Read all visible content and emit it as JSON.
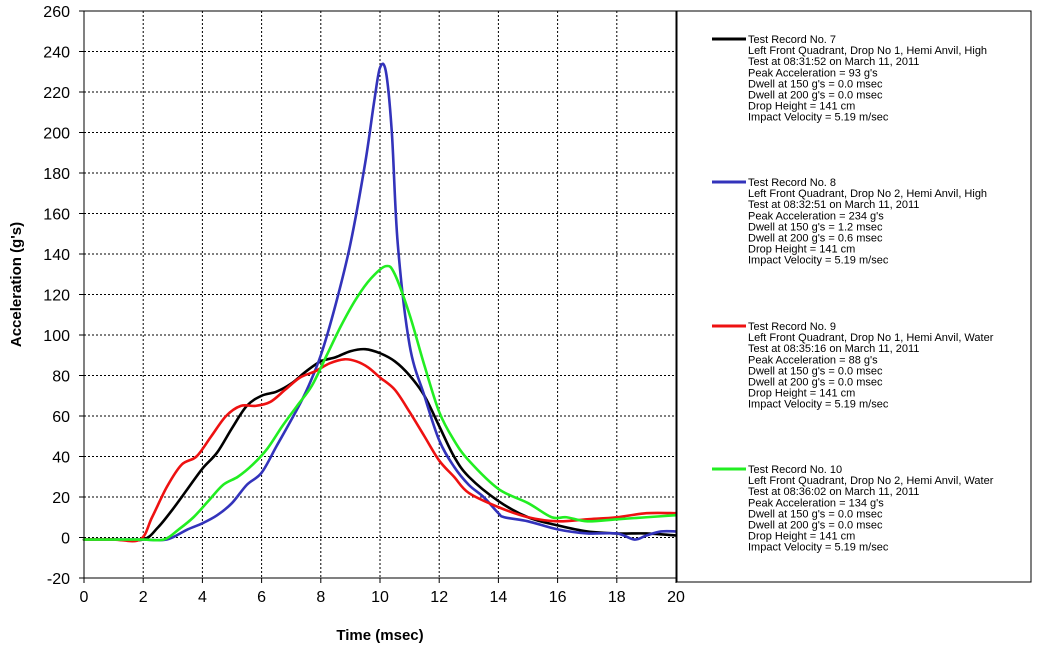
{
  "chart_data": {
    "type": "line",
    "title": "",
    "xlabel": "Time (msec)",
    "ylabel": "Acceleration (g's)",
    "xlim": [
      0,
      20
    ],
    "ylim": [
      -20,
      260
    ],
    "x_ticks": [
      0,
      2,
      4,
      6,
      8,
      10,
      12,
      14,
      16,
      18,
      20
    ],
    "y_ticks": [
      -20,
      0,
      20,
      40,
      60,
      80,
      100,
      120,
      140,
      160,
      180,
      200,
      220,
      240,
      260
    ],
    "grid": true,
    "legend_position": "right",
    "series": [
      {
        "name": "Test Record No. 7",
        "color": "#000000",
        "details": [
          "Left Front Quadrant, Drop No 1, Hemi Anvil, High",
          "Test at 08:31:52 on March 11, 2011",
          "Peak Acceleration = 93 g's",
          "Dwell at 150 g's = 0.0 msec",
          "Dwell at 200 g's = 0.0 msec",
          "Drop Height = 141 cm",
          "Impact Velocity = 5.19 m/sec"
        ],
        "x": [
          0,
          1,
          2,
          2.5,
          3,
          3.5,
          4,
          4.5,
          5,
          5.5,
          6,
          6.5,
          7,
          7.5,
          8,
          8.5,
          9,
          9.5,
          10,
          10.5,
          11,
          11.5,
          12,
          12.5,
          13,
          14,
          15,
          16,
          17,
          18,
          19,
          20
        ],
        "y": [
          -1,
          -1,
          -1,
          5,
          14,
          24,
          34,
          42,
          54,
          65,
          70,
          72,
          76,
          82,
          87,
          89,
          92,
          93,
          91,
          87,
          80,
          70,
          55,
          40,
          30,
          18,
          10,
          6,
          3,
          2,
          2,
          1
        ]
      },
      {
        "name": "Test Record No. 8",
        "color": "#3333bb",
        "details": [
          "Left Front Quadrant, Drop No 2, Hemi Anvil, High",
          "Test at 08:32:51 on March 11, 2011",
          "Peak Acceleration = 234 g's",
          "Dwell at 150 g's = 1.2 msec",
          "Dwell at 200 g's = 0.6 msec",
          "Drop Height = 141 cm",
          "Impact Velocity = 5.19 m/sec"
        ],
        "x": [
          0,
          1,
          2,
          2.8,
          3.5,
          4,
          4.5,
          5,
          5.5,
          6,
          6.5,
          7,
          7.5,
          8,
          8.5,
          9,
          9.5,
          9.8,
          10,
          10.2,
          10.4,
          10.6,
          11,
          11.5,
          12,
          12.5,
          13,
          13.5,
          14,
          14.2,
          15,
          16,
          17,
          18,
          18.6,
          19,
          19.5,
          20
        ],
        "y": [
          -1,
          -1,
          -1,
          -1,
          4,
          7,
          11,
          17,
          26,
          32,
          45,
          58,
          72,
          90,
          115,
          145,
          185,
          215,
          232,
          230,
          200,
          145,
          95,
          70,
          48,
          35,
          26,
          20,
          12,
          10,
          8,
          4,
          2,
          2,
          -1,
          1,
          3,
          3
        ]
      },
      {
        "name": "Test Record No. 9",
        "color": "#ee1111",
        "details": [
          "Left Front Quadrant, Drop No 1, Hemi Anvil, Water",
          "Test at 08:35:16 on March 11, 2011",
          "Peak Acceleration = 88 g's",
          "Dwell at 150 g's = 0.0 msec",
          "Dwell at 200 g's = 0.0 msec",
          "Drop Height = 141 cm",
          "Impact Velocity = 5.19 m/sec"
        ],
        "x": [
          0,
          1,
          1.9,
          2.3,
          2.8,
          3.3,
          3.8,
          4.3,
          4.8,
          5.3,
          5.8,
          6.3,
          6.8,
          7.3,
          7.8,
          8.3,
          8.8,
          9.2,
          9.6,
          10,
          10.5,
          11,
          11.5,
          12,
          12.5,
          13,
          14,
          15,
          16,
          17,
          18,
          19,
          20
        ],
        "y": [
          -1,
          -1,
          -1,
          10,
          25,
          36,
          40,
          50,
          60,
          65,
          65,
          67,
          73,
          79,
          82,
          86,
          88,
          87,
          84,
          79,
          73,
          62,
          50,
          38,
          30,
          22,
          15,
          10,
          8,
          9,
          10,
          12,
          12
        ]
      },
      {
        "name": "Test Record No. 10",
        "color": "#22ee22",
        "details": [
          "Left Front Quadrant, Drop No 2, Hemi Anvil, Water",
          "Test at 08:36:02 on March 11, 2011",
          "Peak Acceleration = 134 g's",
          "Dwell at 150 g's = 0.0 msec",
          "Dwell at 200 g's = 0.0 msec",
          "Drop Height = 141 cm",
          "Impact Velocity = 5.19 m/sec"
        ],
        "x": [
          0,
          1,
          2,
          2.7,
          3.2,
          3.7,
          4.2,
          4.7,
          5.2,
          5.7,
          6.2,
          6.7,
          7.2,
          7.7,
          8.2,
          8.7,
          9.2,
          9.7,
          10.2,
          10.5,
          11,
          11.5,
          12,
          12.5,
          13,
          14,
          15,
          15.8,
          16.3,
          17,
          18,
          19,
          20
        ],
        "y": [
          -1,
          -1,
          -1,
          -1,
          4,
          10,
          18,
          26,
          30,
          36,
          44,
          55,
          65,
          75,
          90,
          105,
          118,
          128,
          134,
          130,
          110,
          85,
          62,
          48,
          38,
          24,
          17,
          10,
          10,
          8,
          9,
          10,
          11
        ]
      }
    ]
  }
}
